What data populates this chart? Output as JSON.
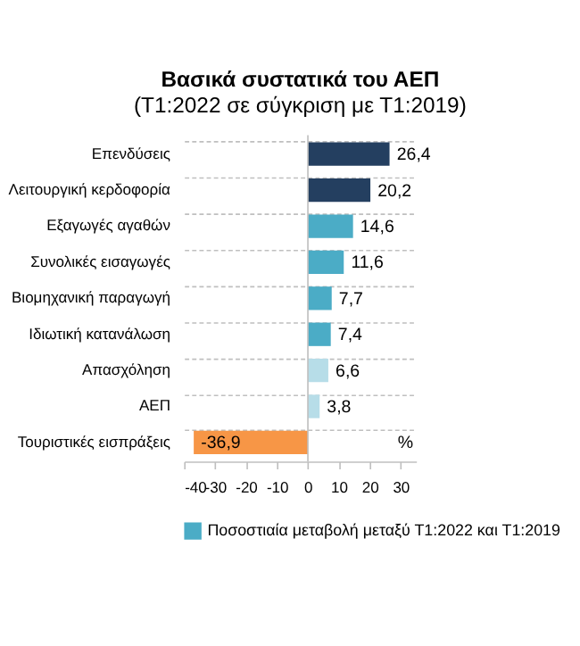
{
  "chart_data": {
    "type": "bar",
    "orientation": "horizontal",
    "title": "Βασικά συστατικά του ΑΕΠ",
    "subtitle": "(Τ1:2022 σε σύγκριση με Τ1:2019)",
    "categories": [
      "Επενδύσεις",
      "Λειτουργική κερδοφορία",
      "Εξαγωγές αγαθών",
      "Συνολικές εισαγωγές",
      "Βιομηχανική παραγωγή",
      "Ιδιωτική κατανάλωση",
      "Απασχόληση",
      "ΑΕΠ",
      "Τουριστικές εισπράξεις"
    ],
    "series": [
      {
        "name": "Ποσοστιαία μεταβολή μεταξύ Τ1:2022 και Τ1:2019",
        "color": "#4bacc6",
        "values": [
          26.4,
          20.2,
          14.6,
          11.6,
          7.7,
          7.4,
          6.6,
          3.8,
          -36.9
        ],
        "colors": [
          "#243f60",
          "#243f60",
          "#4bacc6",
          "#4bacc6",
          "#4bacc6",
          "#4bacc6",
          "#b7dde8",
          "#b7dde8",
          "#f79646"
        ],
        "value_labels": [
          "26,4",
          "20,2",
          "14,6",
          "11,6",
          "7,7",
          "7,4",
          "6,6",
          "3,8",
          "-36,9"
        ]
      }
    ],
    "xlim": [
      -40,
      35
    ],
    "xticks": [
      -40,
      -30,
      -20,
      -10,
      0,
      10,
      20,
      30
    ],
    "ref_lines": [
      {
        "axis": "x",
        "value": 0,
        "color": "#bfbfbf"
      }
    ],
    "annotations": [
      "%"
    ],
    "grid": "y",
    "legend": "bottom"
  }
}
